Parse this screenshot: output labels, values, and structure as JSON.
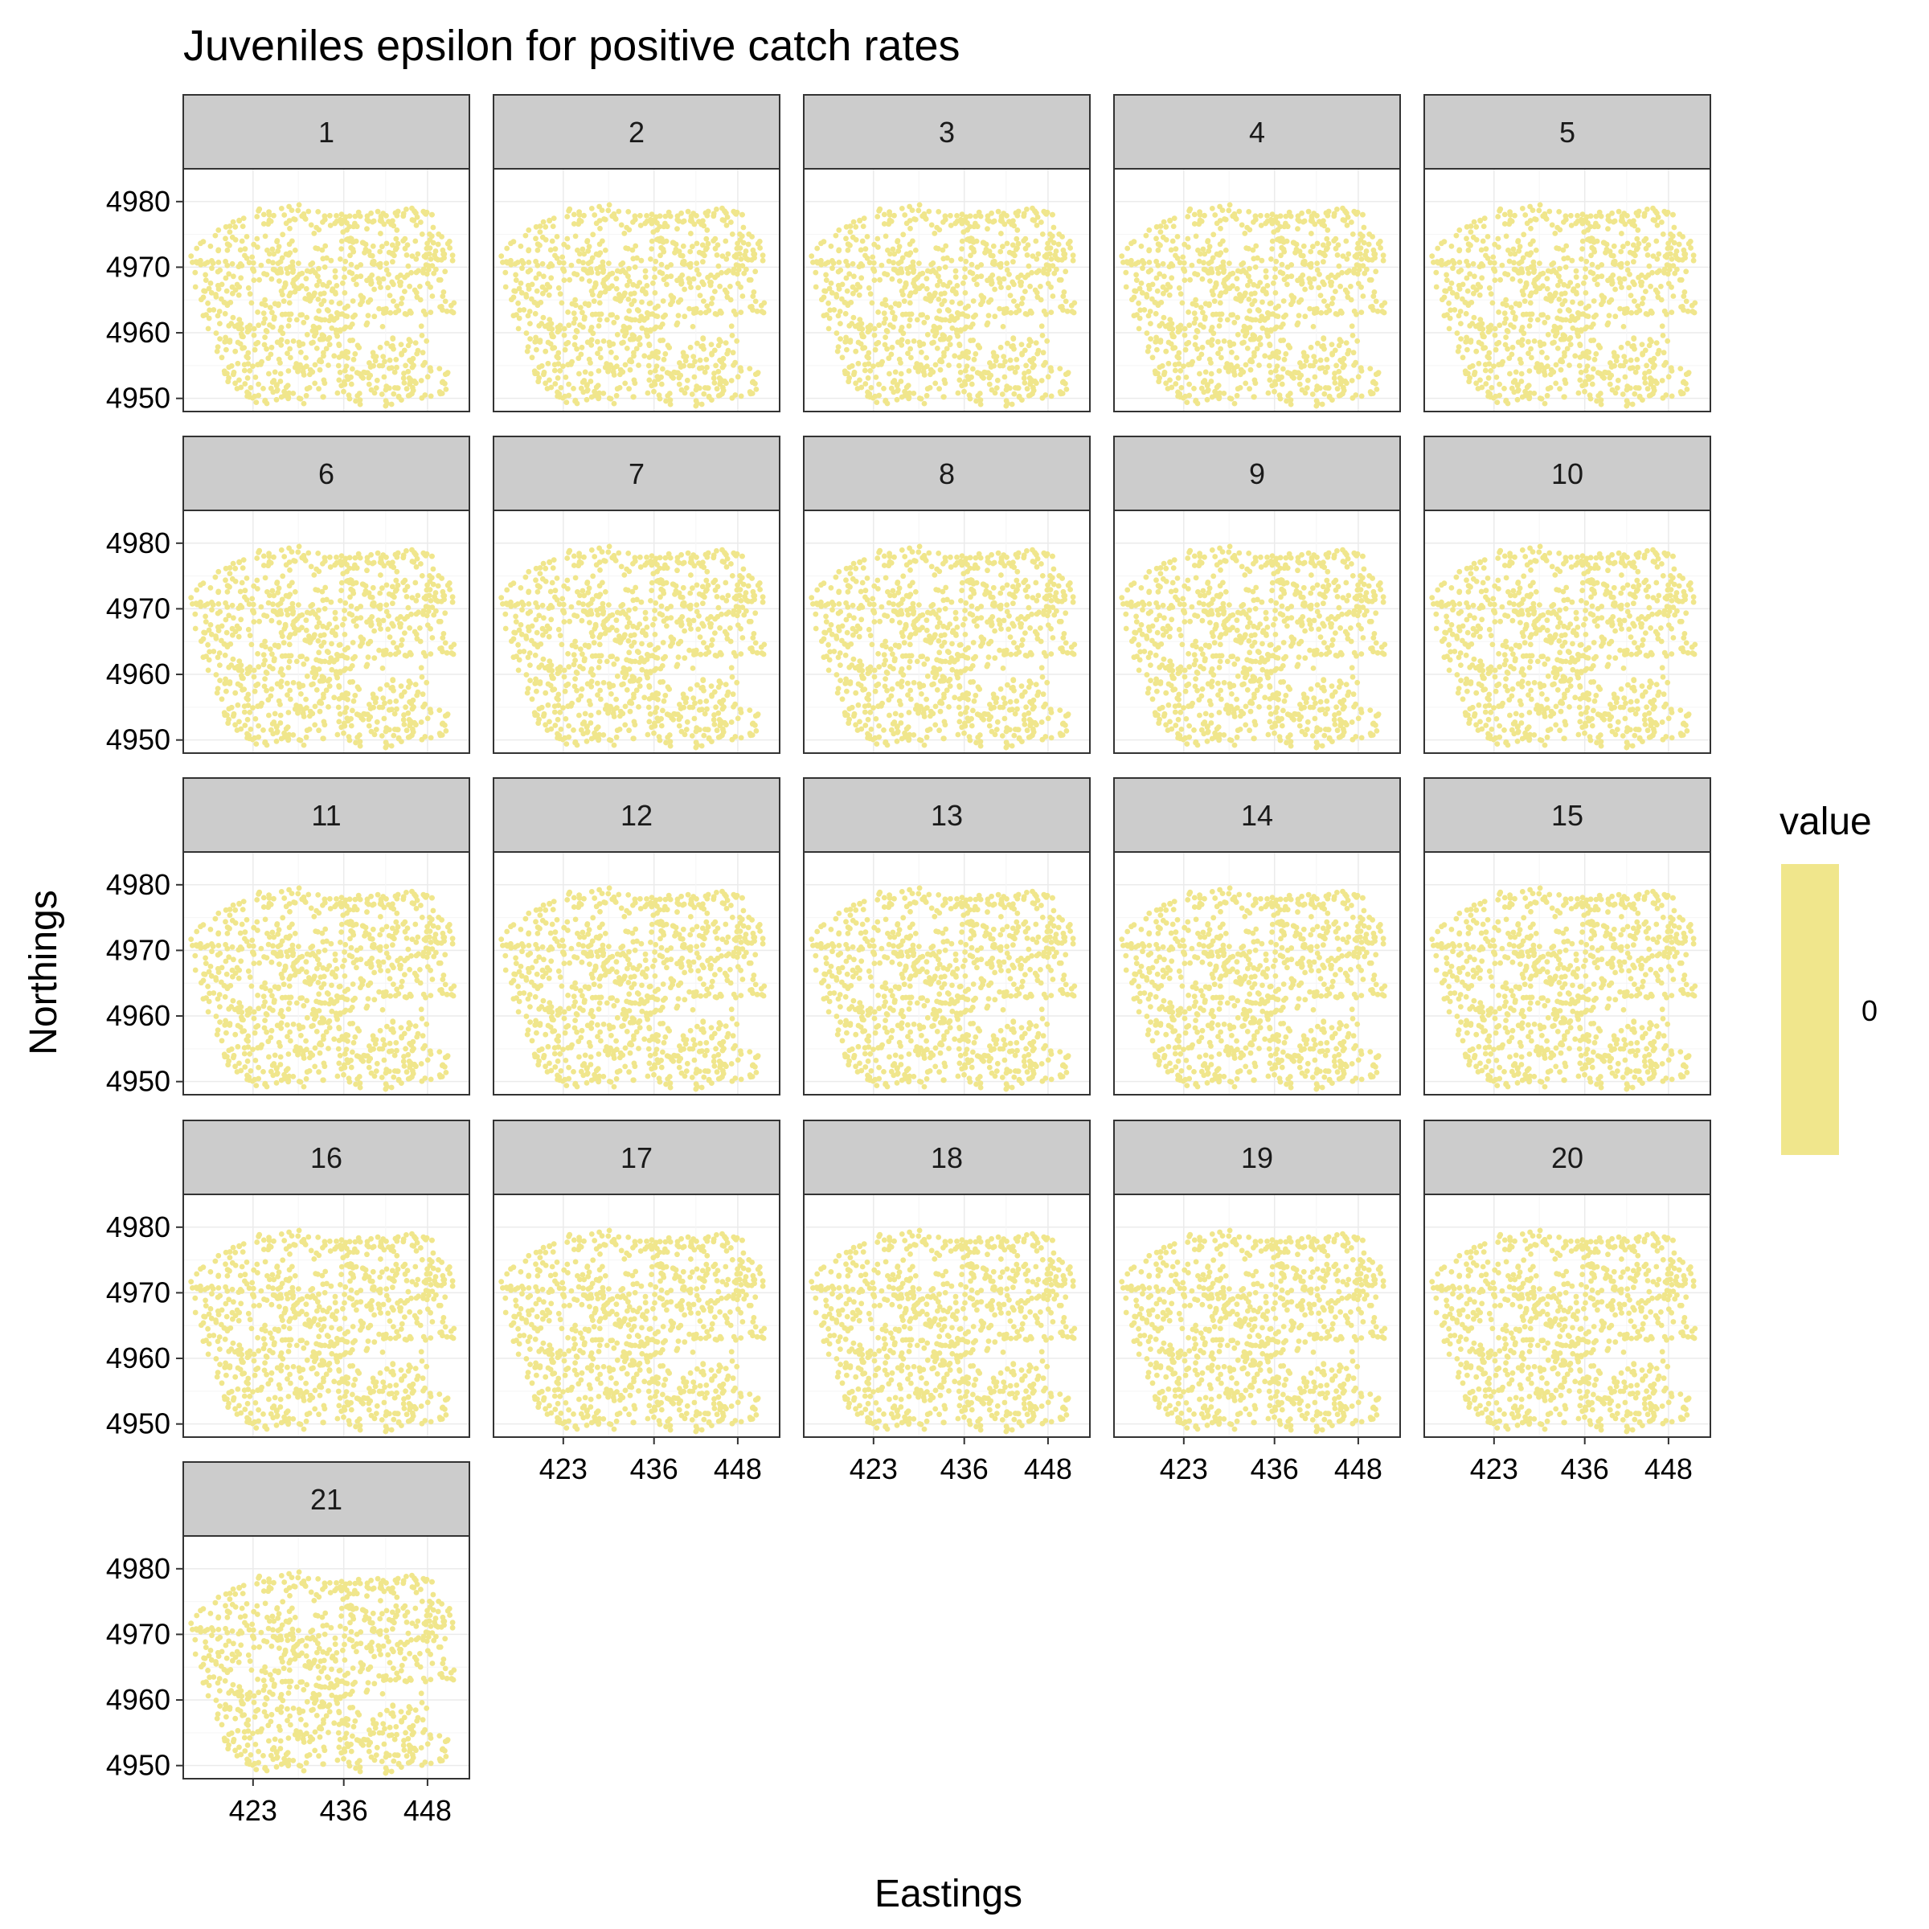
{
  "chart_data": {
    "type": "scatter",
    "title": "Juveniles epsilon for positive catch rates",
    "xlabel": "Eastings",
    "ylabel": "Northings",
    "panels": [
      "1",
      "2",
      "3",
      "4",
      "5",
      "6",
      "7",
      "8",
      "9",
      "10",
      "11",
      "12",
      "13",
      "14",
      "15",
      "16",
      "17",
      "18",
      "19",
      "20",
      "21"
    ],
    "x_ticks": [
      423,
      436,
      448
    ],
    "x_tick_labels": [
      "423",
      "436",
      "448"
    ],
    "y_ticks": [
      4950,
      4960,
      4970,
      4980
    ],
    "y_tick_labels": [
      "4950",
      "4960",
      "4970",
      "4980"
    ],
    "xlim": [
      413,
      454
    ],
    "ylim": [
      4948,
      4985
    ],
    "grid": true,
    "point_color": "#f0e68c",
    "legend": {
      "title": "value",
      "labels": [
        "0"
      ],
      "placement": "right",
      "color": "#f0e68c"
    }
  }
}
